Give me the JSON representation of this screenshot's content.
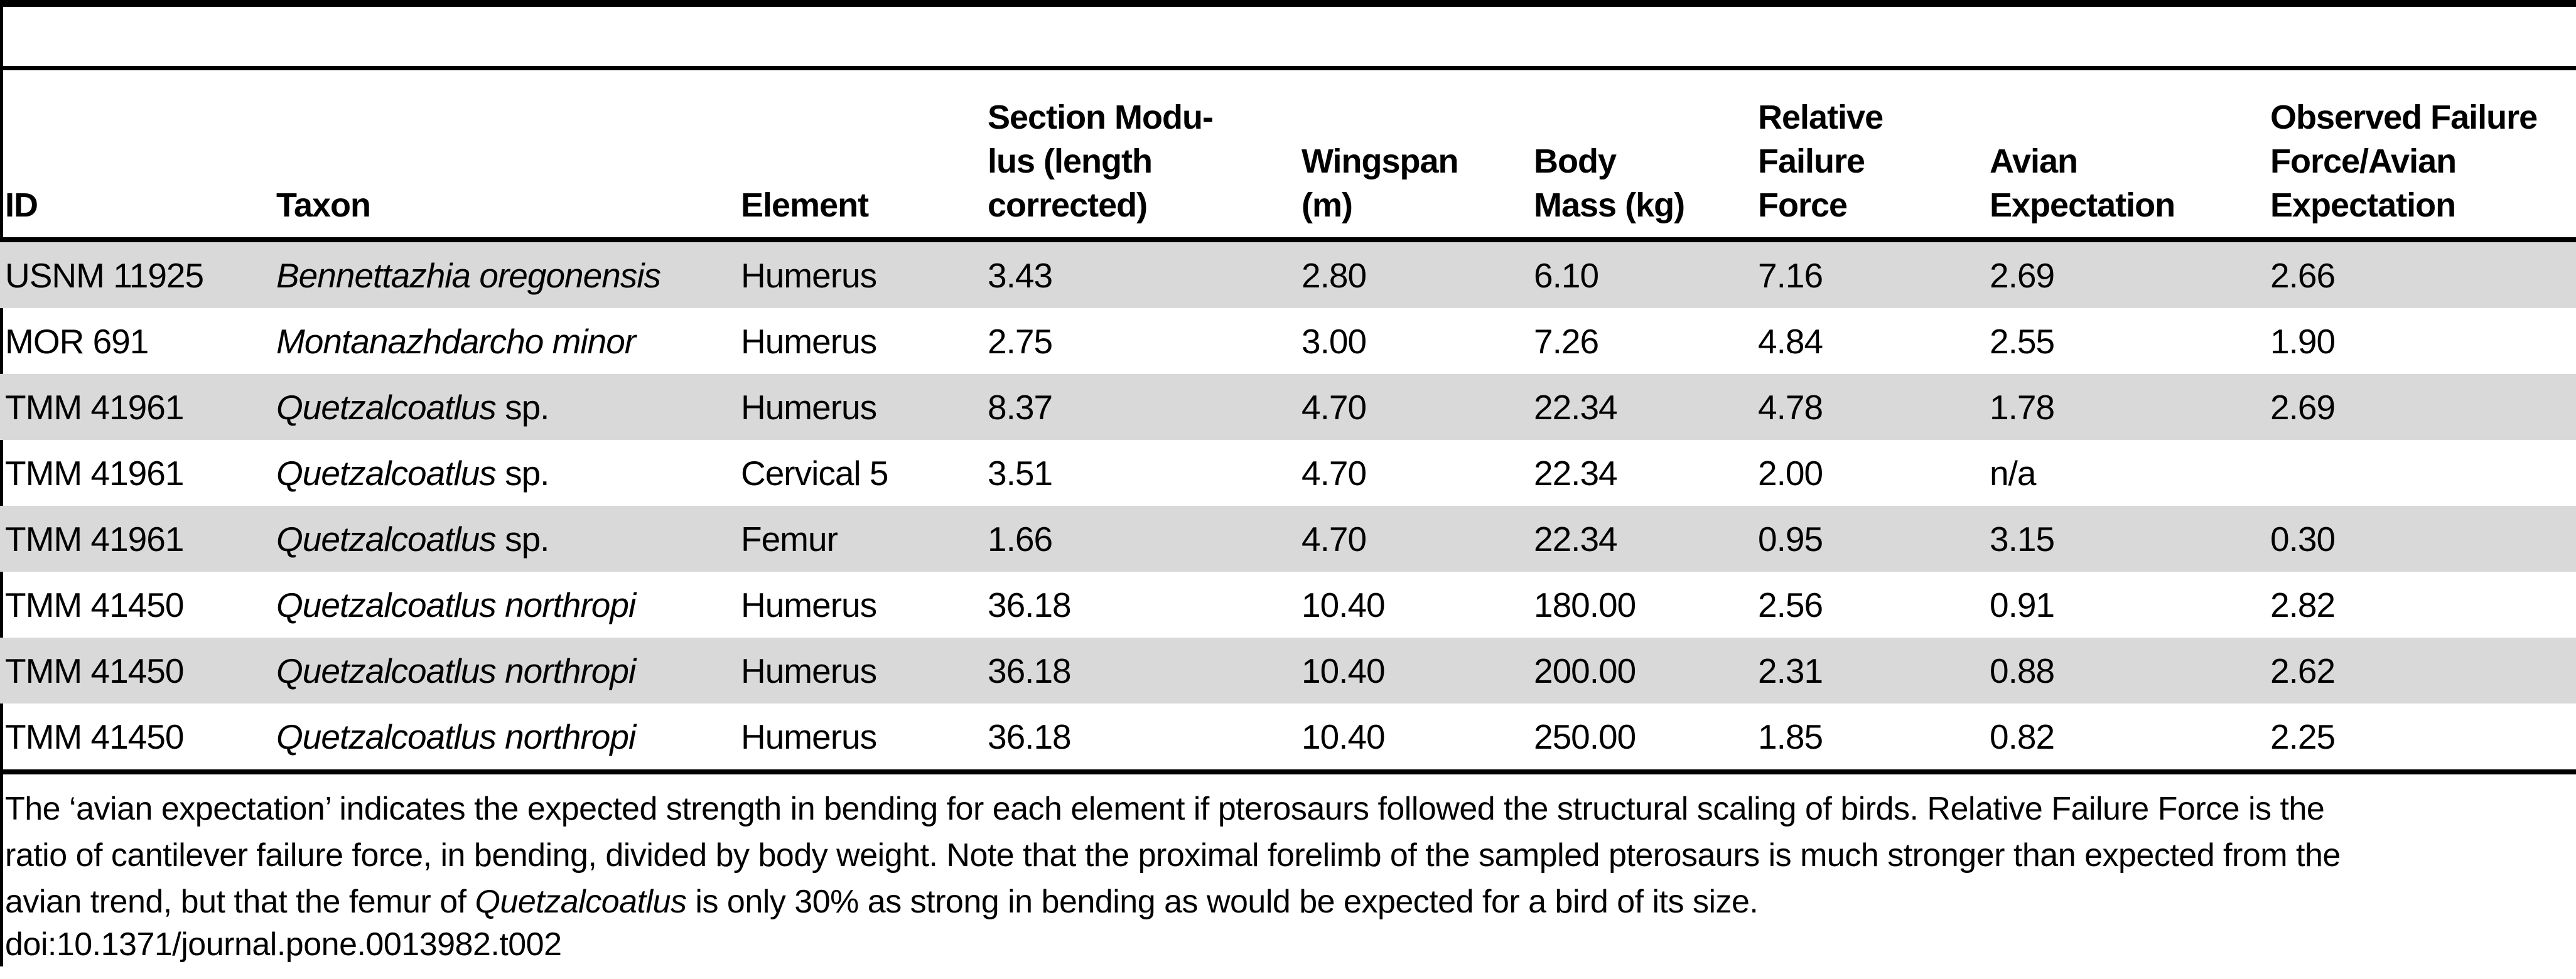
{
  "table": {
    "stripe_color": "#d9d9d9",
    "columns": [
      {
        "label": "ID"
      },
      {
        "label": "Taxon"
      },
      {
        "label": "Element"
      },
      {
        "label": "Section Modu-\nlus (length\ncorrected)"
      },
      {
        "label": "Wingspan\n(m)"
      },
      {
        "label": "Body\nMass (kg)"
      },
      {
        "label": "Relative\nFailure\nForce"
      },
      {
        "label": "Avian\nExpectation"
      },
      {
        "label": "Observed Failure\nForce/Avian\nExpectation"
      }
    ],
    "rows": [
      {
        "shaded": true,
        "id": "USNM 11925",
        "taxon_italic": "Bennettazhia oregonensis",
        "taxon_roman": "",
        "element": "Humerus",
        "section_modulus": "3.43",
        "wingspan": "2.80",
        "body_mass": "6.10",
        "relative_failure_force": "7.16",
        "avian_expectation": "2.69",
        "observed_over_avian": "2.66"
      },
      {
        "shaded": false,
        "id": "MOR 691",
        "taxon_italic": "Montanazhdarcho minor",
        "taxon_roman": "",
        "element": "Humerus",
        "section_modulus": "2.75",
        "wingspan": "3.00",
        "body_mass": "7.26",
        "relative_failure_force": "4.84",
        "avian_expectation": "2.55",
        "observed_over_avian": "1.90"
      },
      {
        "shaded": true,
        "id": "TMM 41961",
        "taxon_italic": "Quetzalcoatlus",
        "taxon_roman": "sp.",
        "element": "Humerus",
        "section_modulus": "8.37",
        "wingspan": "4.70",
        "body_mass": "22.34",
        "relative_failure_force": "4.78",
        "avian_expectation": "1.78",
        "observed_over_avian": "2.69"
      },
      {
        "shaded": false,
        "id": "TMM 41961",
        "taxon_italic": "Quetzalcoatlus",
        "taxon_roman": "sp.",
        "element": "Cervical 5",
        "section_modulus": "3.51",
        "wingspan": "4.70",
        "body_mass": "22.34",
        "relative_failure_force": "2.00",
        "avian_expectation": "n/a",
        "observed_over_avian": ""
      },
      {
        "shaded": true,
        "id": "TMM 41961",
        "taxon_italic": "Quetzalcoatlus",
        "taxon_roman": "sp.",
        "element": "Femur",
        "section_modulus": "1.66",
        "wingspan": "4.70",
        "body_mass": "22.34",
        "relative_failure_force": "0.95",
        "avian_expectation": "3.15",
        "observed_over_avian": "0.30"
      },
      {
        "shaded": false,
        "id": "TMM 41450",
        "taxon_italic": "Quetzalcoatlus northropi",
        "taxon_roman": "",
        "element": "Humerus",
        "section_modulus": "36.18",
        "wingspan": "10.40",
        "body_mass": "180.00",
        "relative_failure_force": "2.56",
        "avian_expectation": "0.91",
        "observed_over_avian": "2.82"
      },
      {
        "shaded": true,
        "id": "TMM 41450",
        "taxon_italic": "Quetzalcoatlus northropi",
        "taxon_roman": "",
        "element": "Humerus",
        "section_modulus": "36.18",
        "wingspan": "10.40",
        "body_mass": "200.00",
        "relative_failure_force": "2.31",
        "avian_expectation": "0.88",
        "observed_over_avian": "2.62"
      },
      {
        "shaded": false,
        "id": "TMM 41450",
        "taxon_italic": "Quetzalcoatlus northropi",
        "taxon_roman": "",
        "element": "Humerus",
        "section_modulus": "36.18",
        "wingspan": "10.40",
        "body_mass": "250.00",
        "relative_failure_force": "1.85",
        "avian_expectation": "0.82",
        "observed_over_avian": "2.25"
      }
    ]
  },
  "footer": {
    "caption_lines": [
      [
        {
          "text": "The ‘avian expectation’ indicates the expected strength in bending for each element if pterosaurs followed the structural scaling of birds. Relative Failure Force is the",
          "italic": false
        }
      ],
      [
        {
          "text": "ratio of cantilever failure force, in bending, divided by body weight. Note that the proximal forelimb of the sampled pterosaurs is much stronger than expected from the",
          "italic": false
        }
      ],
      [
        {
          "text": "avian trend, but that the femur of ",
          "italic": false
        },
        {
          "text": "Quetzalcoatlus",
          "italic": true
        },
        {
          "text": " is only 30% as strong in bending as would be expected for a bird of its size.",
          "italic": false
        }
      ]
    ],
    "doi": "doi:10.1371/journal.pone.0013982.t002"
  }
}
